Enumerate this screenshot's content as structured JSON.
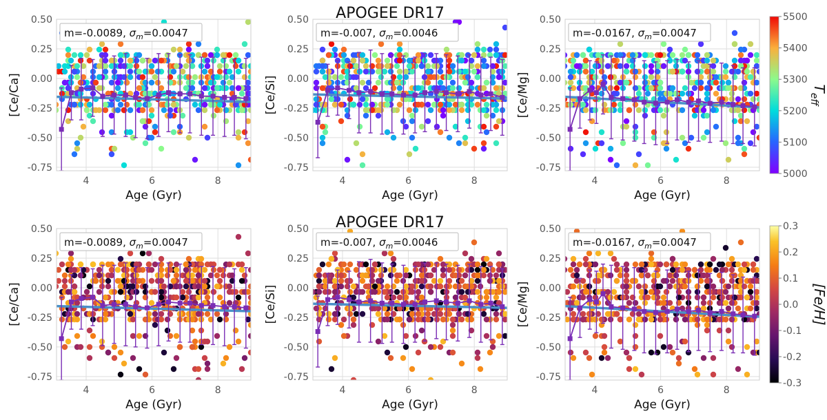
{
  "figure": {
    "rows": [
      {
        "title": "APOGEE DR17",
        "colorbar": {
          "label_main": "T",
          "label_sub": "eff",
          "colormap": "rainbow",
          "range": [
            5000,
            5500
          ],
          "ticks": [
            "5000",
            "5100",
            "5200",
            "5300",
            "5400",
            "5500"
          ]
        }
      },
      {
        "title": "APOGEE DR17",
        "colorbar": {
          "label_main": "[Fe/H]",
          "label_sub": "",
          "colormap": "inferno",
          "range": [
            -0.3,
            0.3
          ],
          "ticks": [
            "-0.3",
            "-0.2",
            "-0.1",
            "0.0",
            "0.1",
            "0.2",
            "0.3"
          ]
        }
      }
    ],
    "colors": {
      "fit_line": "#4a90c8",
      "binned_trend": "#7a2db5",
      "grid": "#dedede",
      "axis_text": "#555555"
    }
  },
  "chart_data": [
    {
      "type": "scatter",
      "row": 0,
      "col": 0,
      "color_by": "Teff",
      "xlabel": "Age (Gyr)",
      "ylabel": "[Ce/Ca]",
      "xlim": [
        3.1,
        9.0
      ],
      "ylim": [
        -0.78,
        0.5
      ],
      "xticks": [
        "4",
        "6",
        "8"
      ],
      "xtick_values": [
        4,
        6,
        8
      ],
      "yticks": [
        "0.50",
        "0.25",
        "0.00",
        "-0.25",
        "-0.50",
        "-0.75"
      ],
      "ytick_values": [
        0.5,
        0.25,
        0.0,
        -0.25,
        -0.5,
        -0.75
      ],
      "annotation": {
        "m": "m=-0.0089, ",
        "sigma_label": "σ",
        "sigma_sub": "m",
        "sigma_val": "=0.0047"
      },
      "fit": {
        "x": [
          3.1,
          9.0
        ],
        "y": [
          -0.155,
          -0.198
        ]
      },
      "binned": {
        "x": [
          3.25,
          3.55,
          3.85,
          4.2,
          4.5,
          4.85,
          5.2,
          5.5,
          5.85,
          6.2,
          6.5,
          6.85,
          7.15,
          7.5,
          7.85,
          8.2,
          8.5,
          8.85
        ],
        "y": [
          -0.43,
          -0.12,
          -0.09,
          -0.08,
          -0.15,
          -0.14,
          -0.14,
          -0.16,
          -0.17,
          -0.14,
          -0.12,
          -0.13,
          -0.13,
          -0.15,
          -0.15,
          -0.16,
          -0.16,
          -0.17
        ],
        "err": [
          0.35,
          0.23,
          0.26,
          0.24,
          0.34,
          0.33,
          0.35,
          0.34,
          0.34,
          0.35,
          0.33,
          0.33,
          0.33,
          0.33,
          0.33,
          0.33,
          0.32,
          0.34
        ]
      }
    },
    {
      "type": "scatter",
      "row": 0,
      "col": 1,
      "color_by": "Teff",
      "xlabel": "Age (Gyr)",
      "ylabel": "[Ce/Si]",
      "xlim": [
        3.1,
        9.0
      ],
      "ylim": [
        -0.78,
        0.5
      ],
      "xticks": [
        "4",
        "6",
        "8"
      ],
      "xtick_values": [
        4,
        6,
        8
      ],
      "yticks": [
        "0.50",
        "0.25",
        "0.00",
        "-0.25",
        "-0.50",
        "-0.75"
      ],
      "ytick_values": [
        0.5,
        0.25,
        0.0,
        -0.25,
        -0.5,
        -0.75
      ],
      "annotation": {
        "m": "m=-0.007, ",
        "sigma_label": "σ",
        "sigma_sub": "m",
        "sigma_val": "=0.0046"
      },
      "fit": {
        "x": [
          3.1,
          9.0
        ],
        "y": [
          -0.135,
          -0.17
        ]
      },
      "binned": {
        "x": [
          3.25,
          3.55,
          3.85,
          4.2,
          4.5,
          4.85,
          5.2,
          5.5,
          5.85,
          6.2,
          6.5,
          6.85,
          7.15,
          7.5,
          7.85,
          8.2,
          8.5,
          8.85
        ],
        "y": [
          -0.37,
          -0.1,
          -0.08,
          -0.1,
          -0.12,
          -0.11,
          -0.13,
          -0.13,
          -0.14,
          -0.14,
          -0.12,
          -0.11,
          -0.12,
          -0.13,
          -0.11,
          -0.14,
          -0.13,
          -0.16
        ],
        "err": [
          0.3,
          0.22,
          0.23,
          0.24,
          0.34,
          0.35,
          0.34,
          0.33,
          0.33,
          0.32,
          0.33,
          0.32,
          0.32,
          0.32,
          0.31,
          0.32,
          0.31,
          0.32
        ]
      }
    },
    {
      "type": "scatter",
      "row": 0,
      "col": 2,
      "color_by": "Teff",
      "xlabel": "Age (Gyr)",
      "ylabel": "[Ce/Mg]",
      "xlim": [
        3.1,
        9.0
      ],
      "ylim": [
        -0.78,
        0.5
      ],
      "xticks": [
        "4",
        "6",
        "8"
      ],
      "xtick_values": [
        4,
        6,
        8
      ],
      "yticks": [
        "0.50",
        "0.25",
        "0.00",
        "-0.25",
        "-0.50",
        "-0.75"
      ],
      "ytick_values": [
        0.5,
        0.25,
        0.0,
        -0.25,
        -0.5,
        -0.75
      ],
      "annotation": {
        "m": "m=-0.0167, ",
        "sigma_label": "σ",
        "sigma_sub": "m",
        "sigma_val": "=0.0047"
      },
      "fit": {
        "x": [
          3.1,
          9.0
        ],
        "y": [
          -0.155,
          -0.245
        ]
      },
      "binned": {
        "x": [
          3.25,
          3.55,
          3.85,
          4.05,
          4.25,
          4.5,
          4.85,
          5.2,
          5.5,
          5.85,
          6.2,
          6.5,
          6.85,
          7.15,
          7.5,
          7.85,
          8.2,
          8.5,
          8.85
        ],
        "y": [
          -0.43,
          -0.17,
          -0.1,
          -0.12,
          -0.05,
          -0.16,
          -0.17,
          -0.18,
          -0.2,
          -0.21,
          -0.2,
          -0.18,
          -0.2,
          -0.19,
          -0.21,
          -0.2,
          -0.22,
          -0.23,
          -0.24
        ],
        "err": [
          0.35,
          0.25,
          0.25,
          0.26,
          0.25,
          0.35,
          0.35,
          0.35,
          0.35,
          0.35,
          0.35,
          0.34,
          0.34,
          0.34,
          0.33,
          0.33,
          0.33,
          0.32,
          0.33
        ]
      }
    },
    {
      "type": "scatter",
      "row": 1,
      "col": 0,
      "color_by": "[Fe/H]",
      "xlabel": "Age (Gyr)",
      "ylabel": "[Ce/Ca]",
      "xlim": [
        3.1,
        9.0
      ],
      "ylim": [
        -0.78,
        0.5
      ],
      "xticks": [
        "4",
        "6",
        "8"
      ],
      "xtick_values": [
        4,
        6,
        8
      ],
      "yticks": [
        "0.50",
        "0.25",
        "0.00",
        "-0.25",
        "-0.50",
        "-0.75"
      ],
      "ytick_values": [
        0.5,
        0.25,
        0.0,
        -0.25,
        -0.5,
        -0.75
      ],
      "annotation": {
        "m": "m=-0.0089, ",
        "sigma_label": "σ",
        "sigma_sub": "m",
        "sigma_val": "=0.0047"
      },
      "fit": {
        "x": [
          3.1,
          9.0
        ],
        "y": [
          -0.155,
          -0.198
        ]
      },
      "binned": {
        "x": [
          3.25,
          3.55,
          3.85,
          4.2,
          4.5,
          4.85,
          5.2,
          5.5,
          5.85,
          6.2,
          6.5,
          6.85,
          7.15,
          7.5,
          7.85,
          8.2,
          8.5,
          8.85
        ],
        "y": [
          -0.43,
          -0.12,
          -0.09,
          -0.08,
          -0.15,
          -0.14,
          -0.14,
          -0.16,
          -0.17,
          -0.14,
          -0.12,
          -0.13,
          -0.13,
          -0.15,
          -0.15,
          -0.16,
          -0.16,
          -0.17
        ],
        "err": [
          0.35,
          0.23,
          0.26,
          0.24,
          0.34,
          0.33,
          0.35,
          0.34,
          0.34,
          0.35,
          0.33,
          0.33,
          0.33,
          0.33,
          0.33,
          0.33,
          0.32,
          0.34
        ]
      }
    },
    {
      "type": "scatter",
      "row": 1,
      "col": 1,
      "color_by": "[Fe/H]",
      "xlabel": "Age (Gyr)",
      "ylabel": "[Ce/Si]",
      "xlim": [
        3.1,
        9.0
      ],
      "ylim": [
        -0.78,
        0.5
      ],
      "xticks": [
        "4",
        "6",
        "8"
      ],
      "xtick_values": [
        4,
        6,
        8
      ],
      "yticks": [
        "0.50",
        "0.25",
        "0.00",
        "-0.25",
        "-0.50",
        "-0.75"
      ],
      "ytick_values": [
        0.5,
        0.25,
        0.0,
        -0.25,
        -0.5,
        -0.75
      ],
      "annotation": {
        "m": "m=-0.007, ",
        "sigma_label": "σ",
        "sigma_sub": "m",
        "sigma_val": "=0.0046"
      },
      "fit": {
        "x": [
          3.1,
          9.0
        ],
        "y": [
          -0.135,
          -0.17
        ]
      },
      "binned": {
        "x": [
          3.25,
          3.55,
          3.85,
          4.2,
          4.5,
          4.85,
          5.2,
          5.5,
          5.85,
          6.2,
          6.5,
          6.85,
          7.15,
          7.5,
          7.85,
          8.2,
          8.5,
          8.85
        ],
        "y": [
          -0.37,
          -0.1,
          -0.08,
          -0.1,
          -0.12,
          -0.11,
          -0.13,
          -0.13,
          -0.14,
          -0.14,
          -0.12,
          -0.11,
          -0.12,
          -0.13,
          -0.11,
          -0.14,
          -0.13,
          -0.16
        ],
        "err": [
          0.3,
          0.22,
          0.23,
          0.24,
          0.34,
          0.35,
          0.34,
          0.33,
          0.33,
          0.32,
          0.33,
          0.32,
          0.32,
          0.32,
          0.31,
          0.32,
          0.31,
          0.32
        ]
      }
    },
    {
      "type": "scatter",
      "row": 1,
      "col": 2,
      "color_by": "[Fe/H]",
      "xlabel": "Age (Gyr)",
      "ylabel": "[Ce/Mg]",
      "xlim": [
        3.1,
        9.0
      ],
      "ylim": [
        -0.78,
        0.5
      ],
      "xticks": [
        "4",
        "6",
        "8"
      ],
      "xtick_values": [
        4,
        6,
        8
      ],
      "yticks": [
        "0.50",
        "0.25",
        "0.00",
        "-0.25",
        "-0.50",
        "-0.75"
      ],
      "ytick_values": [
        0.5,
        0.25,
        0.0,
        -0.25,
        -0.5,
        -0.75
      ],
      "annotation": {
        "m": "m=-0.0167, ",
        "sigma_label": "σ",
        "sigma_sub": "m",
        "sigma_val": "=0.0047"
      },
      "fit": {
        "x": [
          3.1,
          9.0
        ],
        "y": [
          -0.155,
          -0.245
        ]
      },
      "binned": {
        "x": [
          3.25,
          3.55,
          3.85,
          4.05,
          4.25,
          4.5,
          4.85,
          5.2,
          5.5,
          5.85,
          6.2,
          6.5,
          6.85,
          7.15,
          7.5,
          7.85,
          8.2,
          8.5,
          8.85
        ],
        "y": [
          -0.43,
          -0.17,
          -0.1,
          -0.12,
          -0.05,
          -0.16,
          -0.17,
          -0.18,
          -0.2,
          -0.21,
          -0.2,
          -0.18,
          -0.2,
          -0.19,
          -0.21,
          -0.2,
          -0.22,
          -0.23,
          -0.24
        ],
        "err": [
          0.35,
          0.25,
          0.25,
          0.26,
          0.25,
          0.35,
          0.35,
          0.35,
          0.35,
          0.35,
          0.35,
          0.34,
          0.34,
          0.34,
          0.33,
          0.33,
          0.33,
          0.32,
          0.33
        ]
      }
    }
  ]
}
